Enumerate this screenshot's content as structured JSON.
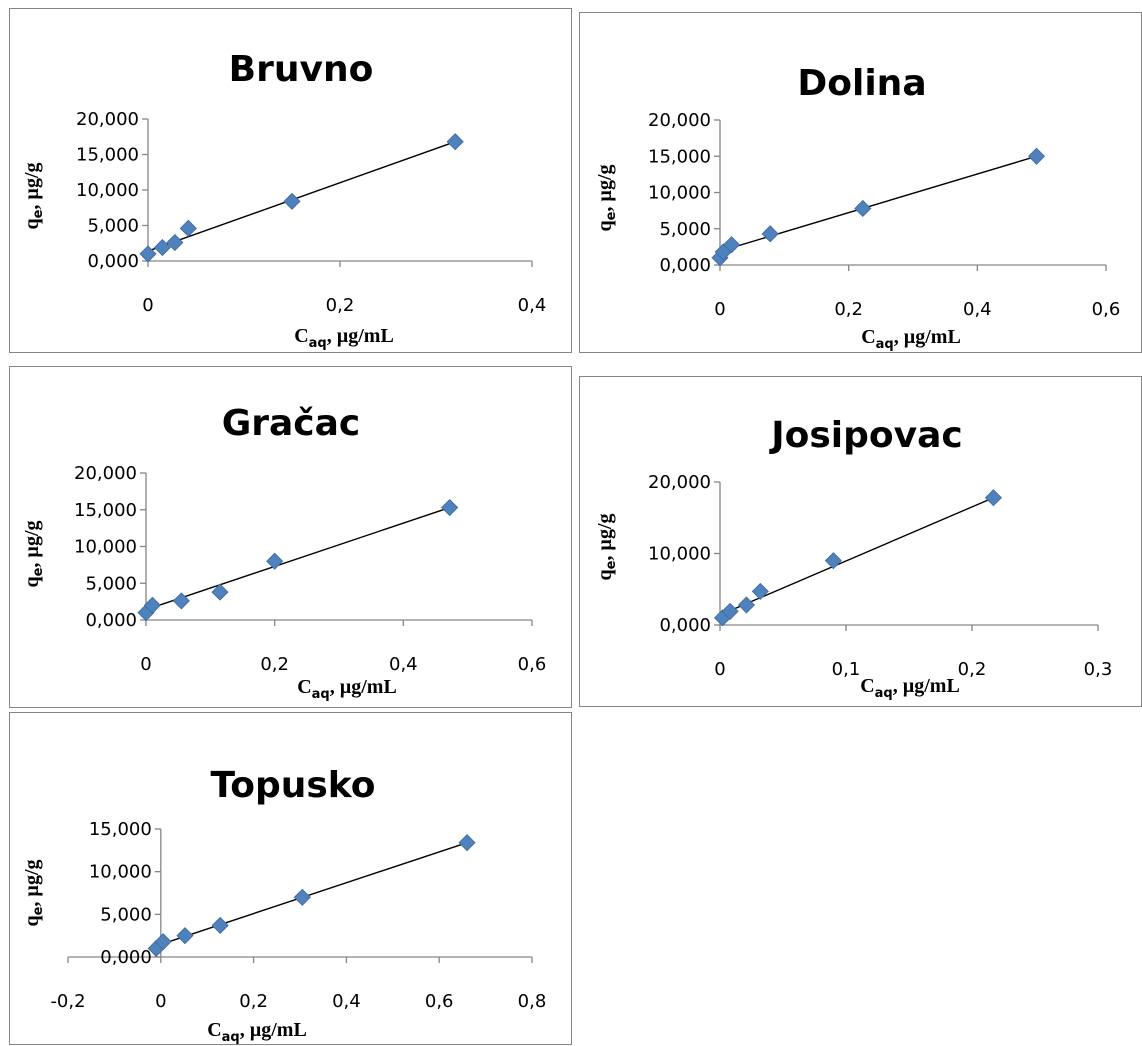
{
  "chart_data": [
    {
      "type": "scatter",
      "title": "Bruvno",
      "xlabel": "Caq, µg/mL",
      "ylabel": "qe, µg/g",
      "xlim": [
        0,
        0.4
      ],
      "ylim": [
        0,
        20000
      ],
      "xticks": [
        "0",
        "0,2",
        "0,4"
      ],
      "yticks": [
        "0,000",
        "5,000",
        "10,000",
        "15,000",
        "20,000"
      ],
      "points": [
        [
          0.0,
          1000
        ],
        [
          0.015,
          1900
        ],
        [
          0.028,
          2600
        ],
        [
          0.042,
          4600
        ],
        [
          0.15,
          8400
        ],
        [
          0.32,
          16800
        ]
      ],
      "trendline": [
        [
          0.0,
          1400
        ],
        [
          0.32,
          16800
        ]
      ],
      "marker_color": "#4f81bd",
      "grid": false,
      "legend": "none"
    },
    {
      "type": "scatter",
      "title": "Dolina",
      "xlabel": "Caq, µg/mL",
      "ylabel": "qe, µg/g",
      "xlim": [
        0,
        0.6
      ],
      "ylim": [
        0,
        20000
      ],
      "xticks": [
        "0",
        "0,2",
        "0,4",
        "0,6"
      ],
      "yticks": [
        "0,000",
        "5,000",
        "10,000",
        "15,000",
        "20,000"
      ],
      "points": [
        [
          0.0,
          1000
        ],
        [
          0.005,
          1800
        ],
        [
          0.018,
          2800
        ],
        [
          0.078,
          4300
        ],
        [
          0.222,
          7800
        ],
        [
          0.492,
          15000
        ]
      ],
      "trendline": [
        [
          0.0,
          1900
        ],
        [
          0.492,
          15000
        ]
      ],
      "marker_color": "#4f81bd",
      "grid": false,
      "legend": "none"
    },
    {
      "type": "scatter",
      "title": "Gračac",
      "xlabel": "Caq, µg/mL",
      "ylabel": "qe, µg/g",
      "xlim": [
        0,
        0.6
      ],
      "ylim": [
        0,
        20000
      ],
      "xticks": [
        "0",
        "0,2",
        "0,4",
        "0,6"
      ],
      "yticks": [
        "0,000",
        "5,000",
        "10,000",
        "15,000",
        "20,000"
      ],
      "points": [
        [
          0.0,
          1000
        ],
        [
          0.01,
          2000
        ],
        [
          0.055,
          2600
        ],
        [
          0.115,
          3800
        ],
        [
          0.2,
          8000
        ],
        [
          0.472,
          15300
        ]
      ],
      "trendline": [
        [
          0.0,
          1400
        ],
        [
          0.472,
          15300
        ]
      ],
      "marker_color": "#4f81bd",
      "grid": false,
      "legend": "none"
    },
    {
      "type": "scatter",
      "title": "Josipovac",
      "xlabel": "Caq, µg/mL",
      "ylabel": "qe, µg/g",
      "xlim": [
        0,
        0.3
      ],
      "ylim": [
        0,
        20000
      ],
      "xticks": [
        "0",
        "0,1",
        "0,2",
        "0,3"
      ],
      "yticks": [
        "0,000",
        "10,000",
        "20,000"
      ],
      "points": [
        [
          0.002,
          1000
        ],
        [
          0.008,
          1900
        ],
        [
          0.021,
          2800
        ],
        [
          0.032,
          4700
        ],
        [
          0.09,
          9000
        ],
        [
          0.217,
          17800
        ]
      ],
      "trendline": [
        [
          0.0,
          1400
        ],
        [
          0.217,
          17800
        ]
      ],
      "marker_color": "#4f81bd",
      "grid": false,
      "legend": "none"
    },
    {
      "type": "scatter",
      "title": "Topusko",
      "xlabel": "Caq, µg/mL",
      "ylabel": "qe, µg/g",
      "xlim": [
        -0.2,
        0.8
      ],
      "ylim": [
        0,
        15000
      ],
      "xticks": [
        "-0,2",
        "0",
        "0,2",
        "0,4",
        "0,6",
        "0,8"
      ],
      "yticks": [
        "0,000",
        "5,000",
        "10,000",
        "15,000"
      ],
      "points": [
        [
          -0.01,
          1000
        ],
        [
          0.005,
          1800
        ],
        [
          0.052,
          2500
        ],
        [
          0.128,
          3700
        ],
        [
          0.305,
          7000
        ],
        [
          0.66,
          13400
        ]
      ],
      "trendline": [
        [
          -0.01,
          1300
        ],
        [
          0.66,
          13400
        ]
      ],
      "marker_color": "#4f81bd",
      "grid": false,
      "legend": "none"
    }
  ]
}
